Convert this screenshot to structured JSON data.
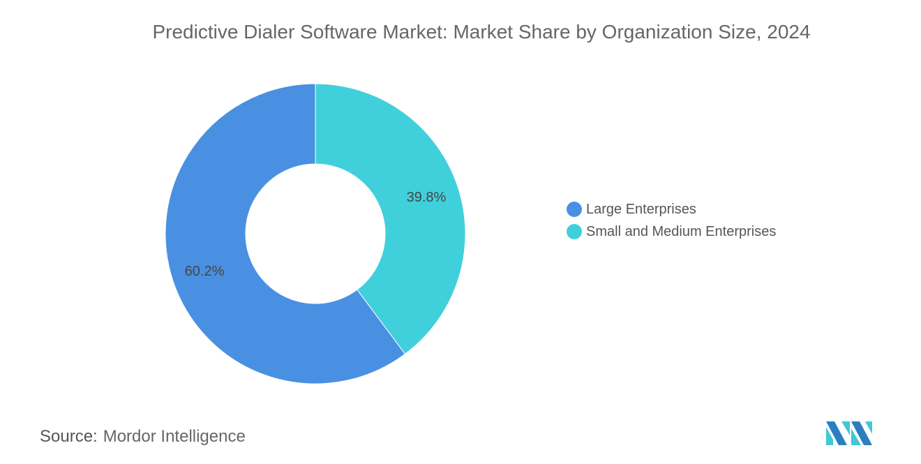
{
  "chart_data": {
    "type": "pie",
    "variant": "donut",
    "title": "Predictive Dialer Software Market: Market Share by Organization Size, 2024",
    "categories": [
      "Large Enterprises",
      "Small and Medium Enterprises"
    ],
    "values": [
      60.2,
      39.8
    ],
    "data_labels": [
      "60.2%",
      "39.8%"
    ],
    "colors": [
      "#4a90e2",
      "#40d0db"
    ],
    "legend_position": "right"
  },
  "source": {
    "label": "Source:",
    "value": "Mordor Intelligence"
  },
  "logo": {
    "text": "Mordor Intelligence"
  }
}
